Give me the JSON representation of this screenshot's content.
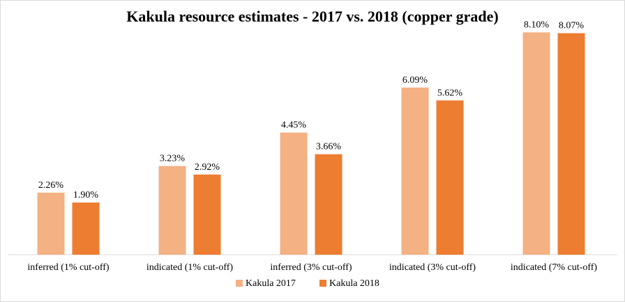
{
  "chart_data": {
    "type": "bar",
    "title": "Kakula resource estimates - 2017 vs. 2018 (copper grade)",
    "categories": [
      "inferred (1% cut-off)",
      "indicated (1% cut-off)",
      "inferred (3% cut-off)",
      "indicated (3% cut-off)",
      "indicated (7% cut-off)"
    ],
    "series": [
      {
        "name": "Kakula 2017",
        "values": [
          2.26,
          3.23,
          4.45,
          6.09,
          8.1
        ],
        "labels": [
          "2.26%",
          "3.23%",
          "4.45%",
          "6.09%",
          "8.10%"
        ],
        "color": "#F4B183"
      },
      {
        "name": "Kakula 2018",
        "values": [
          1.9,
          2.92,
          3.66,
          5.62,
          8.07
        ],
        "labels": [
          "1.90%",
          "2.92%",
          "3.66%",
          "5.62%",
          "8.07%"
        ],
        "color": "#ED7D31"
      }
    ],
    "unit": "%",
    "ylim": [
      0,
      9
    ],
    "grid": false,
    "legend_position": "bottom"
  }
}
